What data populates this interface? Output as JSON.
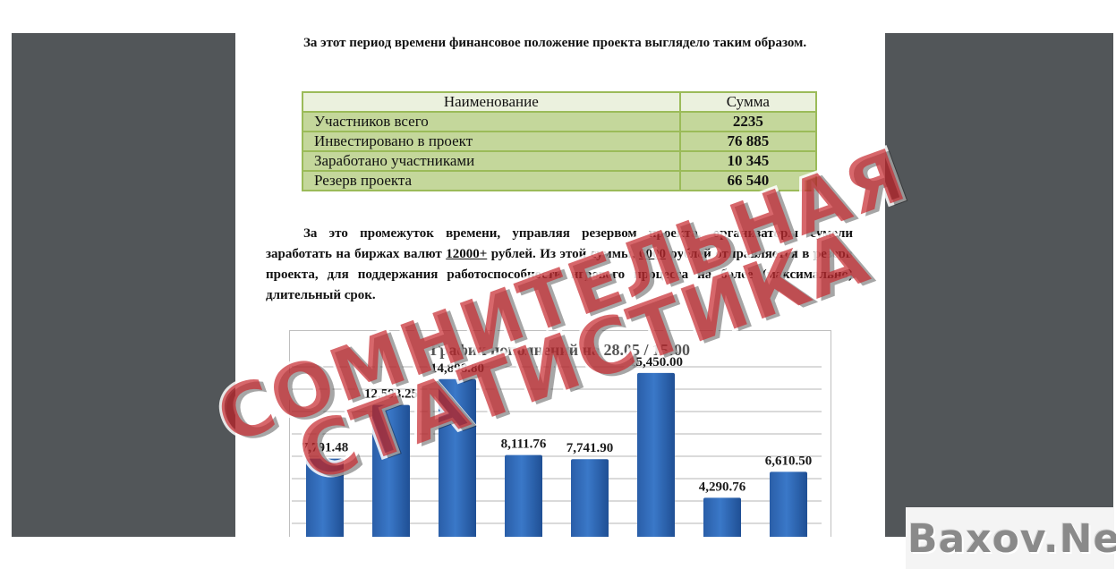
{
  "document": {
    "paragraph1": "За этот период времени финансовое положение проекта выглядело таким образом.",
    "table": {
      "headers": [
        "Наименование",
        "Сумма"
      ],
      "rows": [
        {
          "name": "Участников всего",
          "value": "2235"
        },
        {
          "name": "Инвестировано в проект",
          "value": "76 885"
        },
        {
          "name": "Заработано участниками",
          "value": "10 345"
        },
        {
          "name": "Резерв проекта",
          "value": "66 540"
        }
      ]
    },
    "paragraph2": {
      "part1": "За это промежуток времени, управляя резервом проекта, организаторы сумели заработать на биржах валют ",
      "amount1": "12000+",
      "part2": " рублей. Из этой суммы, ",
      "amount2": "6000",
      "part3": " рублей отправляется в резерв проекта, для поддержания работоспособности игрового процесса на более (максимально) длительный срок."
    }
  },
  "chart_data": {
    "type": "bar",
    "title": "График пополнений на 28.05 / 15:00",
    "values": [
      7791.48,
      12593.25,
      14898.8,
      8111.76,
      7741.9,
      15450.0,
      4290.76,
      6610.5
    ],
    "labels": [
      "7,791.48",
      "12,593.25",
      "14,898.80",
      "8,111.76",
      "7,741.90",
      "15,450.00",
      "4,290.76",
      "6,610.50"
    ],
    "bar_color": "#3a78c8",
    "grid": true
  },
  "watermark": {
    "line1": "СОМНИТЕЛЬНАЯ",
    "line2": "СТАТИСТИКА",
    "color": "#c82d32"
  },
  "site_logo": "Baxov.Net"
}
